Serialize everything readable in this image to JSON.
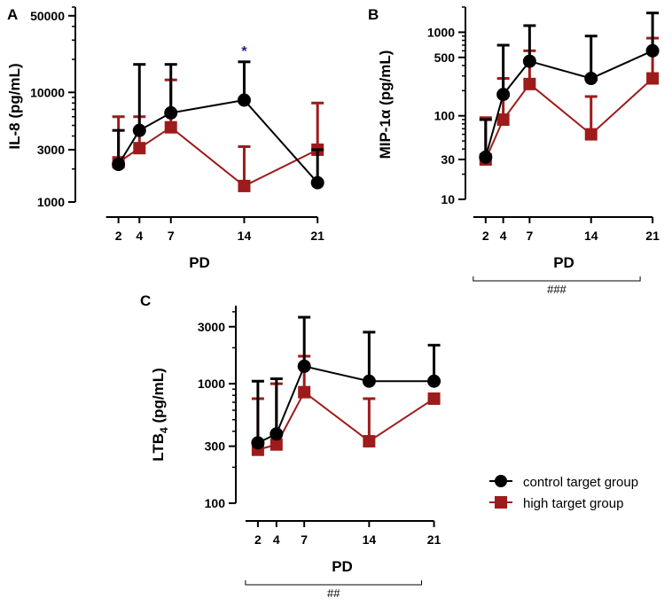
{
  "colors": {
    "control": "#000000",
    "high": "#9e1b1b",
    "star": "#1a237e"
  },
  "legend": {
    "control_label": "control target group",
    "high_label": "high target group"
  },
  "chart_data": [
    {
      "type": "line",
      "panel_label": "A",
      "ylabel_main": "IL-8",
      "ylabel_unit": "(pg/mL)",
      "xlabel": "PD",
      "yscale": "log",
      "ylim": [
        1000,
        60000
      ],
      "yticks": [
        1000,
        3000,
        10000,
        50000
      ],
      "ytick_labels": [
        "1000",
        "3000",
        "10000",
        "50000"
      ],
      "x": [
        2,
        4,
        7,
        14,
        21
      ],
      "xtick_labels": [
        "2",
        "4",
        "7",
        "14",
        "21"
      ],
      "xlim": [
        0,
        22
      ],
      "bracket_label": "",
      "annotations": [
        {
          "text": "*",
          "x": 14,
          "y": 25000
        }
      ],
      "series": [
        {
          "name": "control target group",
          "values": [
            2200,
            4500,
            6500,
            8500,
            1500
          ],
          "err_upper": [
            4500,
            18000,
            18000,
            19000,
            3000
          ]
        },
        {
          "name": "high target group",
          "values": [
            2300,
            3100,
            4800,
            1400,
            3000
          ],
          "err_upper": [
            6000,
            6000,
            13000,
            3200,
            8000
          ]
        }
      ]
    },
    {
      "type": "line",
      "panel_label": "B",
      "ylabel_main": "MIP-1",
      "ylabel_greek": "α",
      "ylabel_unit": "(pg/mL)",
      "xlabel": "PD",
      "yscale": "log",
      "ylim": [
        10,
        2000
      ],
      "yticks": [
        10,
        30,
        100,
        500,
        1000
      ],
      "ytick_labels": [
        "10",
        "30",
        "100",
        "500",
        "1000"
      ],
      "x": [
        2,
        4,
        7,
        14,
        21
      ],
      "xtick_labels": [
        "2",
        "4",
        "7",
        "14",
        "21"
      ],
      "xlim": [
        0,
        22
      ],
      "bracket_label": "###",
      "annotations": [],
      "series": [
        {
          "name": "control target group",
          "values": [
            32,
            180,
            450,
            280,
            600
          ],
          "err_upper": [
            90,
            700,
            1200,
            900,
            1700
          ]
        },
        {
          "name": "high target group",
          "values": [
            30,
            90,
            240,
            60,
            280
          ],
          "err_upper": [
            95,
            280,
            600,
            170,
            850
          ]
        }
      ]
    },
    {
      "type": "line",
      "panel_label": "C",
      "ylabel_main": "LTB",
      "ylabel_sub": "4",
      "ylabel_unit": "(pg/mL)",
      "xlabel": "PD",
      "yscale": "log",
      "ylim": [
        100,
        4500
      ],
      "yticks": [
        100,
        300,
        1000,
        3000
      ],
      "ytick_labels": [
        "100",
        "300",
        "1000",
        "3000"
      ],
      "x": [
        2,
        4,
        7,
        14,
        21
      ],
      "xtick_labels": [
        "2",
        "4",
        "7",
        "14",
        "21"
      ],
      "xlim": [
        0,
        22
      ],
      "bracket_label": "##",
      "annotations": [],
      "series": [
        {
          "name": "control target group",
          "values": [
            320,
            380,
            1400,
            1050,
            1050
          ],
          "err_upper": [
            1050,
            1100,
            3600,
            2700,
            2100
          ]
        },
        {
          "name": "high target group",
          "values": [
            280,
            310,
            850,
            330,
            750
          ],
          "err_upper": [
            750,
            1000,
            1700,
            750,
            750
          ]
        }
      ]
    }
  ]
}
